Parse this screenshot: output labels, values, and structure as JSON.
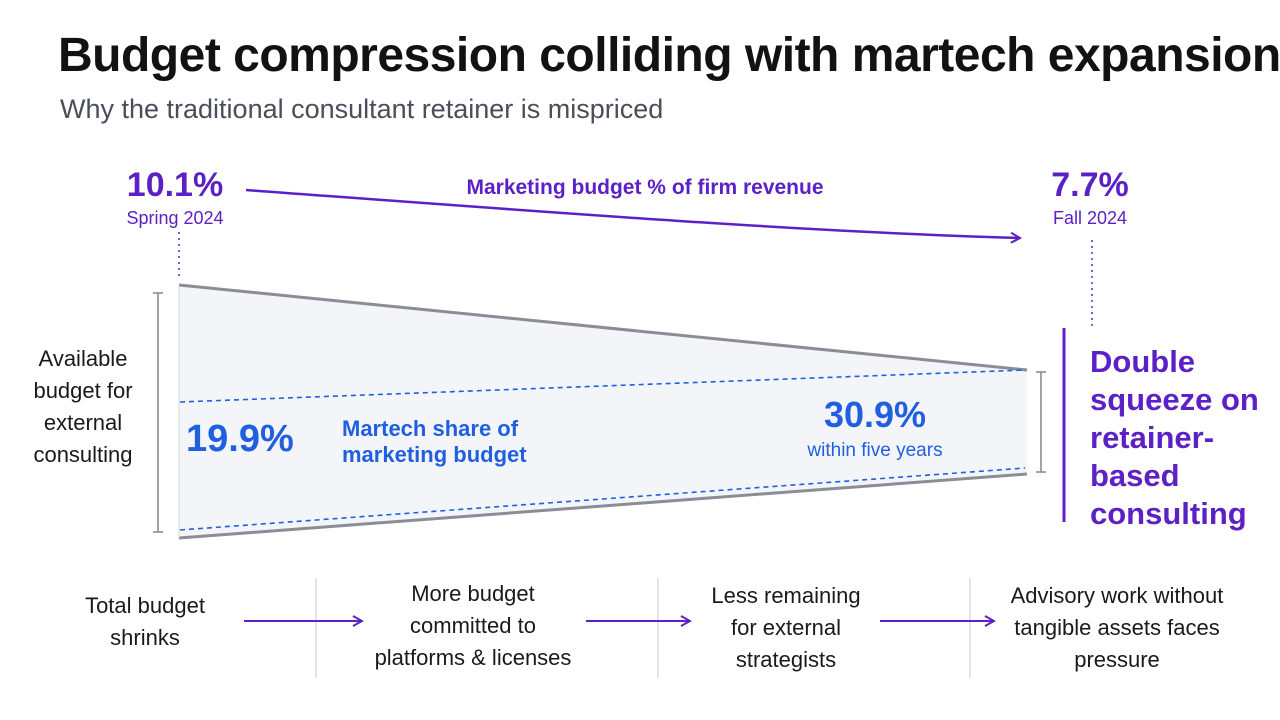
{
  "header": {
    "title": "Budget compression colliding with martech expansion",
    "subtitle": "Why the traditional consultant retainer is mispriced"
  },
  "revenue_trend": {
    "start_value": "10.1%",
    "start_date": "Spring 2024",
    "end_value": "7.7%",
    "end_date": "Fall 2024",
    "label": "Marketing budget % of firm revenue"
  },
  "funnel": {
    "left_label": "Available budget for external consulting",
    "martech_start": "19.9%",
    "martech_label": "Martech share of marketing budget",
    "martech_end": "30.9%",
    "martech_end_note": "within five years",
    "squeeze_label": "Double squeeze on retainer-based consulting"
  },
  "flow": [
    {
      "text": "Total budget shrinks"
    },
    {
      "text": "More budget committed to platforms & licenses"
    },
    {
      "text": "Less remaining for external strategists"
    },
    {
      "text": "Advisory work without tangible assets faces pressure"
    }
  ],
  "colors": {
    "purple": "#5b21c7",
    "blue": "#1f5fe0",
    "funnel_edge": "#8a8d95",
    "funnel_fill": "#f4f5f8"
  }
}
